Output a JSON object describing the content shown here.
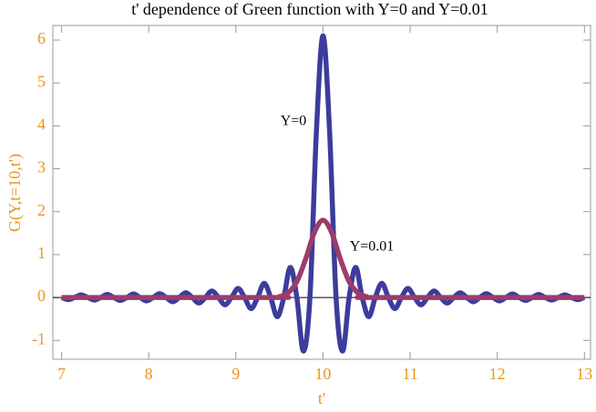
{
  "chart_data": {
    "type": "line",
    "title": "t' dependence of Green function with Y=0 and Y=0.01",
    "x_label": "t'",
    "y_label": "G(Y,t=10,t')",
    "xlim": [
      6.9,
      13.07
    ],
    "ylim": [
      -1.44,
      6.34
    ],
    "xticks": [
      7,
      8,
      9,
      10,
      11,
      12,
      13
    ],
    "yticks": [
      -1,
      0,
      1,
      2,
      3,
      4,
      5,
      6
    ],
    "series": [
      {
        "name": "Y=0",
        "color": "#3c3c9c",
        "x": [
          7,
          7.075,
          7.15,
          7.225,
          7.3,
          7.375,
          7.45,
          7.525,
          7.6,
          7.675,
          7.75,
          7.825,
          7.9,
          7.975,
          8.05,
          8.125,
          8.2,
          8.275,
          8.35,
          8.425,
          8.5,
          8.575,
          8.65,
          8.725,
          8.8,
          8.875,
          8.95,
          9.025,
          9.1,
          9.175,
          9.25,
          9.325,
          9.4,
          9.475,
          9.55,
          9.625,
          9.7,
          9.775,
          9.85,
          9.925,
          10,
          10.075,
          10.15,
          10.225,
          10.3,
          10.375,
          10.45,
          10.525,
          10.6,
          10.675,
          10.75,
          10.825,
          10.9,
          10.975,
          11.05,
          11.125,
          11.2,
          11.275,
          11.35,
          11.425,
          11.5,
          11.575,
          11.65,
          11.725,
          11.8,
          11.875,
          11.95,
          12.025,
          12.1,
          12.175,
          12.25,
          12.325,
          12.4,
          12.475,
          12.55,
          12.625,
          12.7,
          12.775,
          12.85,
          12.925,
          13
        ],
        "values": [
          0,
          -0.05,
          0,
          0.06,
          0,
          -0.06,
          0,
          0.07,
          0,
          -0.07,
          0,
          0.08,
          0,
          -0.08,
          0,
          0.09,
          0,
          -0.1,
          0,
          0.11,
          0,
          -0.13,
          0,
          0.15,
          0,
          -0.17,
          0,
          0.21,
          0,
          -0.26,
          0,
          0.33,
          0,
          -0.45,
          0,
          0.7,
          0,
          -1.25,
          0,
          3.9,
          6.1,
          3.9,
          0,
          -1.25,
          0,
          0.7,
          0,
          -0.45,
          0,
          0.33,
          0,
          -0.26,
          0,
          0.21,
          0,
          -0.17,
          0,
          0.15,
          0,
          -0.13,
          0,
          0.11,
          0,
          -0.1,
          0,
          0.09,
          0,
          -0.08,
          0,
          0.08,
          0,
          -0.07,
          0,
          0.07,
          0,
          -0.06,
          0,
          0.06,
          0,
          -0.05,
          0
        ]
      },
      {
        "name": "Y=0.01",
        "color": "#9c3c6c",
        "x": [
          7,
          9.4,
          9.5,
          9.6,
          9.7,
          9.8,
          9.9,
          10,
          10.1,
          10.2,
          10.3,
          10.4,
          10.5,
          10.6,
          13
        ],
        "values": [
          0,
          0,
          0.02,
          0.11,
          0.37,
          0.89,
          1.51,
          1.8,
          1.51,
          0.89,
          0.37,
          0.11,
          0.02,
          0,
          0
        ]
      }
    ]
  }
}
